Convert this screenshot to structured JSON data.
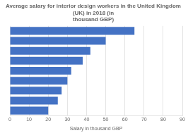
{
  "chart_data": {
    "type": "bar",
    "orientation": "horizontal",
    "title": "Average salary for interior design workers in the United Kingdom (UK) in 2018 (in\nthousand GBP)",
    "xlabel": "Salary in thousand GBP",
    "categories": [
      null,
      null,
      null,
      null,
      null,
      null,
      null,
      null,
      null
    ],
    "values": [
      65,
      50,
      42,
      38,
      32,
      30,
      27,
      25,
      20
    ],
    "color": "#4472C4",
    "xlim": [
      0,
      90
    ],
    "xticks": [
      0,
      10,
      20,
      30,
      40,
      50,
      60,
      70,
      80,
      90
    ],
    "grid": true,
    "tick_labels": "x"
  }
}
